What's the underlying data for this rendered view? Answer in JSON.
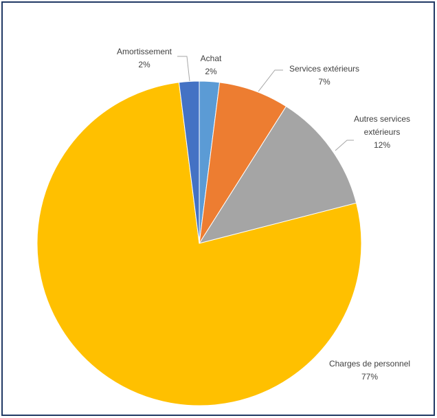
{
  "chart_data": {
    "type": "pie",
    "categories": [
      "Achat",
      "Services extérieurs",
      "Autres services extérieurs",
      "Charges de personnel",
      "Amortissement"
    ],
    "values": [
      2,
      7,
      12,
      77,
      2
    ],
    "value_labels": [
      "2%",
      "7%",
      "12%",
      "77%",
      "2%"
    ],
    "colors": [
      "#5b9bd5",
      "#ed7d31",
      "#a5a5a5",
      "#ffc000",
      "#4472c4"
    ]
  }
}
